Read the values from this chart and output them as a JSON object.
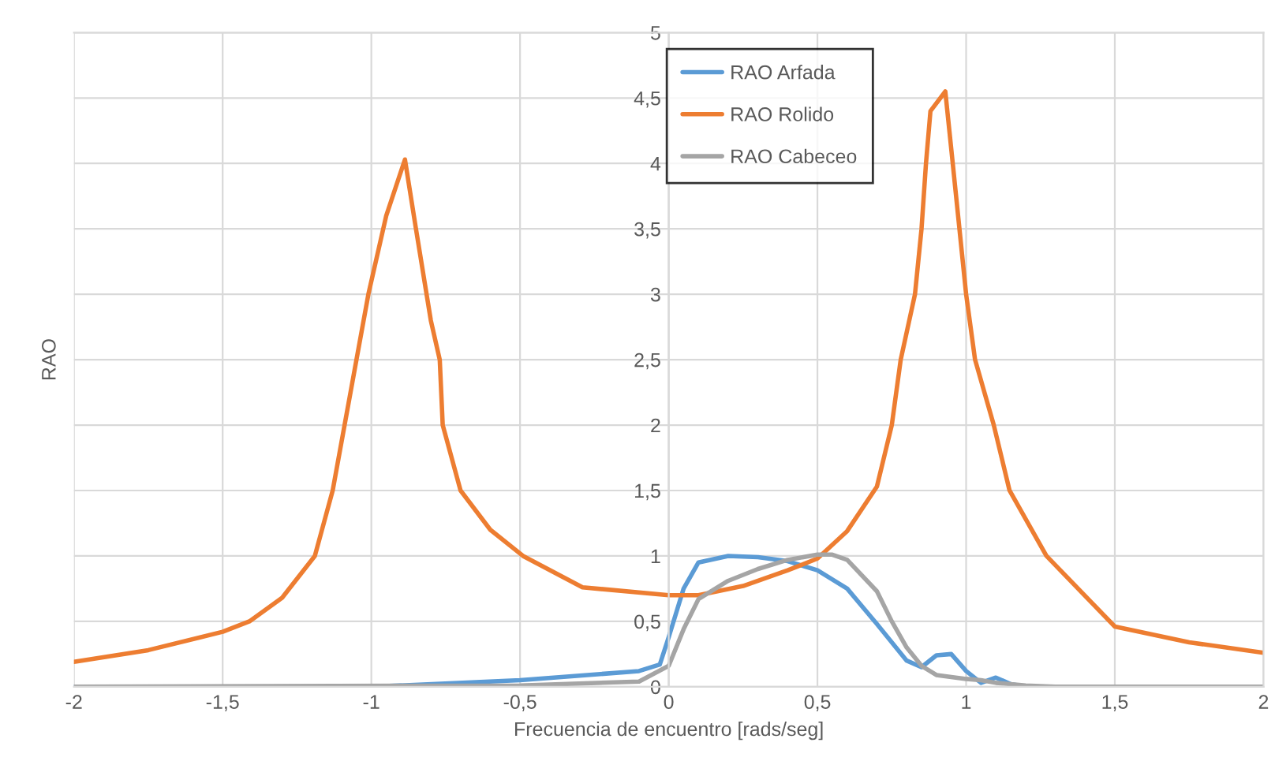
{
  "chart_data": {
    "type": "line",
    "xlabel": "Frecuencia de encuentro [rads/seg]",
    "ylabel": "RAO",
    "xlim": [
      -2,
      2
    ],
    "ylim": [
      0,
      5
    ],
    "xticks": [
      -2,
      {
        "value": -1.5,
        "label": "-1,5"
      },
      -1,
      {
        "value": -0.5,
        "label": "-0,5"
      },
      0,
      {
        "value": 0.5,
        "label": "0,5"
      },
      1,
      {
        "value": 1.5,
        "label": "1,5"
      },
      2
    ],
    "yticks": [
      0,
      {
        "value": 0.5,
        "label": "0,5"
      },
      1,
      {
        "value": 1.5,
        "label": "1,5"
      },
      2,
      {
        "value": 2.5,
        "label": "2,5"
      },
      3,
      {
        "value": 3.5,
        "label": "3,5"
      },
      4,
      {
        "value": 4.5,
        "label": "4,5"
      },
      5
    ],
    "grid": true,
    "legend": "top",
    "line_style": "solid",
    "series": [
      {
        "name": "RAO Arfada",
        "color": "#5b9bd5",
        "x": [
          -2,
          -1,
          -0.5,
          -0.1,
          -0.03,
          0,
          0.05,
          0.1,
          0.2,
          0.3,
          0.4,
          0.5,
          0.6,
          0.7,
          0.8,
          0.85,
          0.9,
          0.95,
          1.0,
          1.05,
          1.1,
          1.15,
          1.2,
          2
        ],
        "values": [
          0,
          0,
          0.05,
          0.12,
          0.17,
          0.38,
          0.75,
          0.95,
          1.0,
          0.99,
          0.96,
          0.89,
          0.75,
          0.48,
          0.2,
          0.15,
          0.24,
          0.25,
          0.12,
          0.03,
          0.07,
          0.02,
          0,
          0
        ]
      },
      {
        "name": "RAO Rolido",
        "color": "#ed7d31",
        "x": [
          -2,
          -1.75,
          -1.5,
          -1.41,
          -1.3,
          -1.19,
          -1.13,
          -1.09,
          -1.05,
          -1.01,
          -0.95,
          -0.887,
          -0.85,
          -0.8,
          -0.77,
          -0.76,
          -0.7,
          -0.6,
          -0.49,
          -0.29,
          0,
          0.1,
          0.25,
          0.4,
          0.5,
          0.6,
          0.7,
          0.75,
          0.78,
          0.828,
          0.85,
          0.865,
          0.88,
          0.93,
          0.955,
          1.0,
          1.03,
          1.093,
          1.146,
          1.27,
          1.5,
          1.75,
          2
        ],
        "values": [
          0.19,
          0.28,
          0.42,
          0.5,
          0.68,
          1.0,
          1.5,
          2.0,
          2.5,
          3.0,
          3.6,
          4.03,
          3.5,
          2.8,
          2.5,
          2.0,
          1.5,
          1.2,
          1.0,
          0.76,
          0.7,
          0.7,
          0.77,
          0.89,
          0.98,
          1.19,
          1.53,
          2.0,
          2.5,
          3.0,
          3.5,
          4.0,
          4.4,
          4.55,
          4.0,
          3.0,
          2.5,
          2.0,
          1.5,
          1.0,
          0.46,
          0.34,
          0.26
        ]
      },
      {
        "name": "RAO Cabeceo",
        "color": "#a5a5a5",
        "x": [
          -2,
          -0.5,
          -0.1,
          0,
          0.05,
          0.1,
          0.2,
          0.3,
          0.4,
          0.5,
          0.55,
          0.6,
          0.7,
          0.75,
          0.8,
          0.85,
          0.9,
          1.0,
          1.05,
          1.1,
          1.2,
          1.3,
          2
        ],
        "values": [
          0,
          0.01,
          0.04,
          0.16,
          0.44,
          0.67,
          0.81,
          0.9,
          0.97,
          1.01,
          1.01,
          0.97,
          0.73,
          0.5,
          0.3,
          0.16,
          0.09,
          0.06,
          0.05,
          0.03,
          0.01,
          0,
          0
        ]
      }
    ]
  }
}
